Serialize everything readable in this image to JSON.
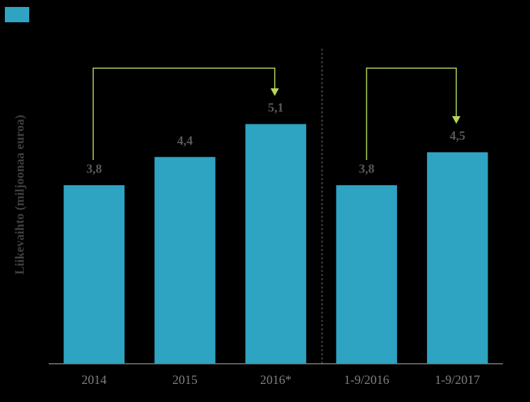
{
  "chart_data": {
    "type": "bar",
    "y_axis_label": "Liikevaihto (miljoonaa euroa)",
    "categories": [
      "2014",
      "2015",
      "2016*",
      "1-9/2016",
      "1-9/2017"
    ],
    "values": [
      3.8,
      4.4,
      5.1,
      3.8,
      4.5
    ],
    "value_labels": [
      "3,8",
      "4,4",
      "5,1",
      "3,8",
      "4,5"
    ],
    "color": "#2ea3c2",
    "ylim": [
      0,
      7
    ]
  }
}
